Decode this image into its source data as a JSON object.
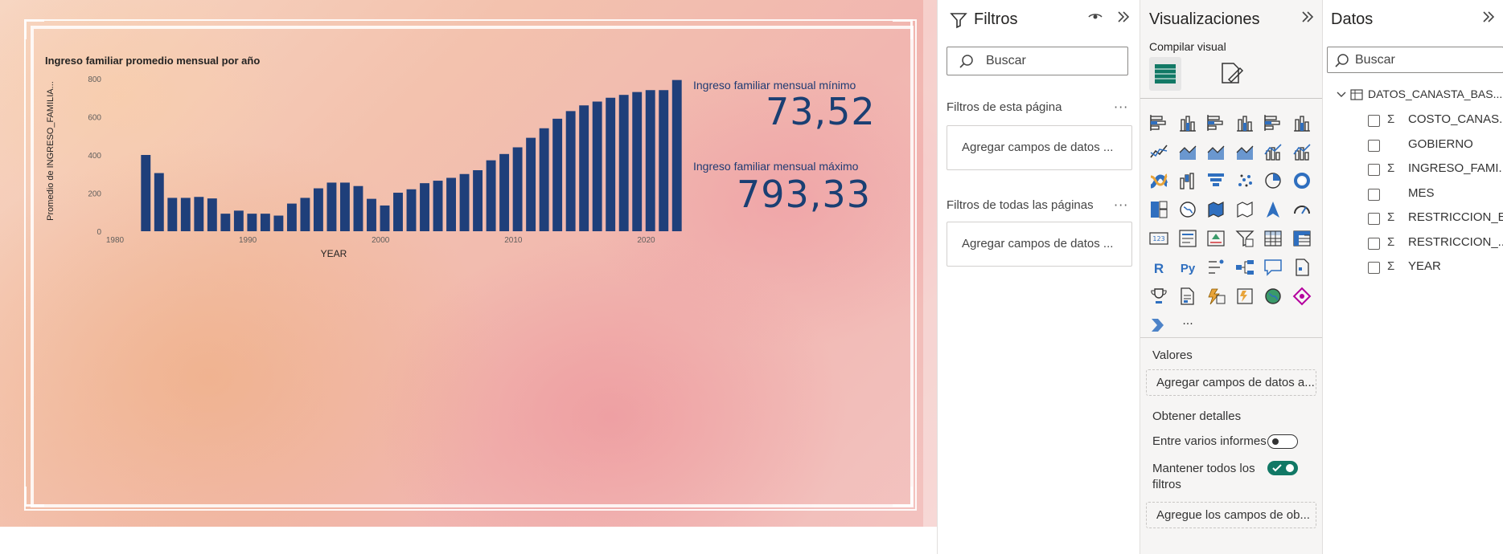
{
  "report": {
    "chart": {
      "title": "Ingreso familiar promedio mensual por año",
      "ylabel": "Promedio de INGRESO_FAMILIA...",
      "xlabel": "YEAR"
    },
    "card_min": {
      "label": "Ingreso familiar mensual mínimo",
      "value": "73,52"
    },
    "card_max": {
      "label": "Ingreso familiar mensual máximo",
      "value": "793,33"
    }
  },
  "chart_data": {
    "type": "bar",
    "title": "Ingreso familiar promedio mensual por año",
    "xlabel": "YEAR",
    "ylabel": "Promedio de INGRESO_FAMILIA...",
    "x": [
      1982,
      1983,
      1984,
      1985,
      1986,
      1987,
      1988,
      1989,
      1990,
      1991,
      1992,
      1993,
      1994,
      1995,
      1996,
      1997,
      1998,
      1999,
      2000,
      2001,
      2002,
      2003,
      2004,
      2005,
      2006,
      2007,
      2008,
      2009,
      2010,
      2011,
      2012,
      2013,
      2014,
      2015,
      2016,
      2017,
      2018,
      2019,
      2020,
      2021,
      2022
    ],
    "values": [
      400,
      305,
      175,
      175,
      180,
      172,
      92,
      108,
      92,
      92,
      82,
      145,
      175,
      225,
      255,
      255,
      237,
      170,
      135,
      202,
      220,
      252,
      265,
      280,
      300,
      320,
      372,
      405,
      440,
      490,
      540,
      590,
      630,
      660,
      680,
      700,
      715,
      730,
      740,
      740,
      793
    ],
    "xticks": [
      1980,
      1990,
      2000,
      2010,
      2020
    ],
    "yticks": [
      0,
      200,
      400,
      600,
      800
    ],
    "xlim": [
      1980,
      2023
    ],
    "ylim": [
      0,
      800
    ],
    "bar_color": "#1f3f7a",
    "grid": false,
    "legend": "none"
  },
  "filters": {
    "title": "Filtros",
    "search_placeholder": "Buscar",
    "page_filters_label": "Filtros de esta página",
    "page_filters_drop": "Agregar campos de datos ...",
    "all_pages_label": "Filtros de todas las páginas",
    "all_pages_drop": "Agregar campos de datos ..."
  },
  "visualizations": {
    "title": "Visualizaciones",
    "build_label": "Compilar visual",
    "icons": [
      "stacked-bar-chart",
      "stacked-column-chart",
      "clustered-bar-chart",
      "clustered-column-chart",
      "100-stacked-bar-chart",
      "100-stacked-column-chart",
      "line-chart",
      "area-chart",
      "stacked-area-chart",
      "100-stacked-area-chart",
      "line-and-stacked-column-chart",
      "line-and-clustered-column-chart",
      "ribbon-chart",
      "waterfall-chart",
      "funnel-chart",
      "scatter-chart",
      "pie-chart",
      "donut-chart",
      "treemap",
      "map",
      "filled-map",
      "shape-map",
      "azure-map",
      "gauge",
      "card",
      "multi-row-card",
      "kpi",
      "slicer",
      "table",
      "matrix",
      "r-script-visual",
      "python-visual",
      "key-influencers",
      "decomposition-tree",
      "qa-visual",
      "paginated-report",
      "trophy-goals",
      "smart-narrative",
      "power-apps",
      "power-automate",
      "arcgis-map",
      "custom-visual",
      "power-automate-flow",
      "more-visuals"
    ],
    "r_label": "R",
    "py_label": "Py",
    "more_label": "···",
    "values_label": "Valores",
    "values_drop": "Agregar campos de datos a...",
    "drill_label": "Obtener detalles",
    "cross_report_label": "Entre varios informes",
    "cross_report_on": false,
    "keep_filters_label": "Mantener todos los filtros",
    "keep_filters_line1": "Mantener todos los",
    "keep_filters_line2": "filtros",
    "keep_filters_on": true,
    "drill_drop": "Agregue los campos de ob...",
    "toggle_on_color": "#117865"
  },
  "data_pane": {
    "title": "Datos",
    "search_placeholder": "Buscar",
    "table_name": "DATOS_CANASTA_BAS...",
    "fields": [
      {
        "name": "COSTO_CANAS...",
        "sigma": true
      },
      {
        "name": "GOBIERNO",
        "sigma": false
      },
      {
        "name": "INGRESO_FAMI...",
        "sigma": true
      },
      {
        "name": "MES",
        "sigma": false
      },
      {
        "name": "RESTRICCION_E...",
        "sigma": true
      },
      {
        "name": "RESTRICCION_...",
        "sigma": true
      },
      {
        "name": "YEAR",
        "sigma": true
      }
    ]
  }
}
